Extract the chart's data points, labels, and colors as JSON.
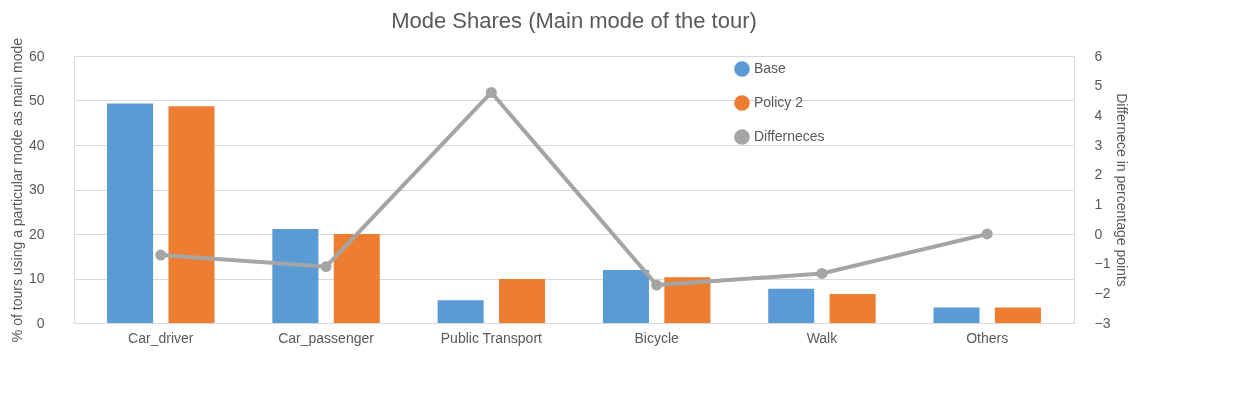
{
  "chart_data": {
    "type": "bar",
    "title": "Mode Shares (Main mode of the tour)",
    "ylabel": "% of tours using a particular mode as main mode",
    "y2label": "Differnece in percentage points",
    "categories": [
      "Car_driver",
      "Car_passenger",
      "Public Transport",
      "Bicycle",
      "Walk",
      "Others"
    ],
    "series": [
      {
        "name": "Base",
        "color": "#5b9bd5",
        "values": [
          49.3,
          21.1,
          5.1,
          11.9,
          7.7,
          3.5
        ]
      },
      {
        "name": "Policy 2",
        "color": "#ed7d31",
        "values": [
          48.7,
          20.0,
          9.9,
          10.3,
          6.5,
          3.5
        ]
      },
      {
        "name": "Differneces",
        "type": "line",
        "axis": "y2",
        "color": "#a5a5a5",
        "marker": "circle",
        "values": [
          -0.71,
          -1.1,
          4.77,
          -1.72,
          -1.33,
          0
        ]
      }
    ],
    "ylim": [
      0,
      60
    ],
    "yticks": [
      0,
      10,
      20,
      30,
      40,
      50,
      60
    ],
    "y2lim": [
      -3,
      6
    ],
    "y2ticks": [
      -3,
      -2,
      -1,
      0,
      1,
      2,
      3,
      4,
      5,
      6
    ],
    "grid": "y",
    "legend": "top right"
  }
}
